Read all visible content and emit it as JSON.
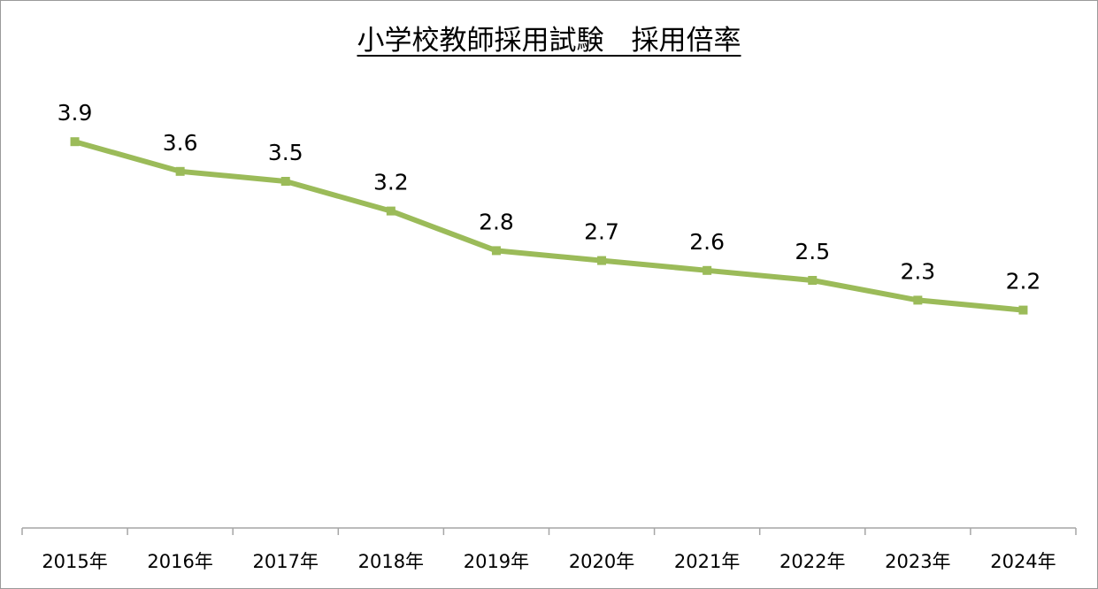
{
  "chart_data": {
    "type": "line",
    "title": "小学校教師採用試験　採用倍率",
    "categories": [
      "2015年",
      "2016年",
      "2017年",
      "2018年",
      "2019年",
      "2020年",
      "2021年",
      "2022年",
      "2023年",
      "2024年"
    ],
    "series": [
      {
        "values": [
          3.9,
          3.6,
          3.5,
          3.2,
          2.8,
          2.7,
          2.6,
          2.5,
          2.3,
          2.2
        ]
      }
    ],
    "data_labels": [
      "3.9",
      "3.6",
      "3.5",
      "3.2",
      "2.8",
      "2.7",
      "2.6",
      "2.5",
      "2.3",
      "2.2"
    ],
    "ylim": [
      0,
      4
    ],
    "grid": false,
    "legend": "none",
    "colors": {
      "line": "#9bbb59",
      "axis": "#a6a6a6"
    }
  }
}
